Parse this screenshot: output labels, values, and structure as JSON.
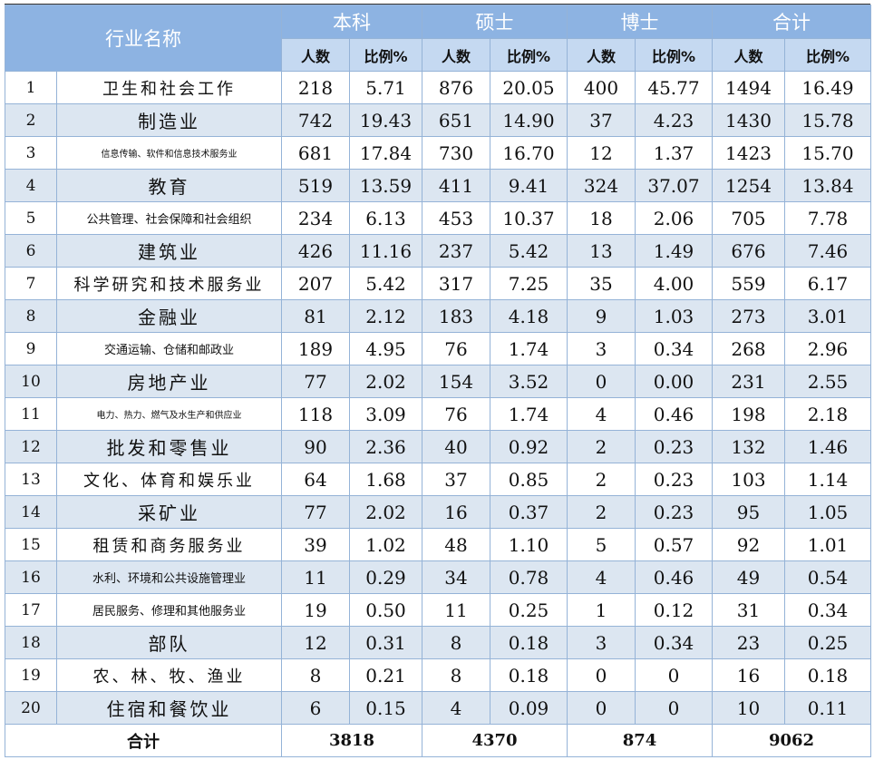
{
  "table": {
    "header": {
      "name": "行业名称",
      "groups": [
        "本科",
        "硕士",
        "博士",
        "合计"
      ],
      "sub": [
        "人数",
        "比例%"
      ]
    },
    "rows": [
      [
        "1",
        "卫生和社会工作",
        "218",
        "5.71",
        "876",
        "20.05",
        "400",
        "45.77",
        "1494",
        "16.49"
      ],
      [
        "2",
        "制造业",
        "742",
        "19.43",
        "651",
        "14.90",
        "37",
        "4.23",
        "1430",
        "15.78"
      ],
      [
        "3",
        "信息传输、软件和信息技术服务业",
        "681",
        "17.84",
        "730",
        "16.70",
        "12",
        "1.37",
        "1423",
        "15.70"
      ],
      [
        "4",
        "教育",
        "519",
        "13.59",
        "411",
        "9.41",
        "324",
        "37.07",
        "1254",
        "13.84"
      ],
      [
        "5",
        "公共管理、社会保障和社会组织",
        "234",
        "6.13",
        "453",
        "10.37",
        "18",
        "2.06",
        "705",
        "7.78"
      ],
      [
        "6",
        "建筑业",
        "426",
        "11.16",
        "237",
        "5.42",
        "13",
        "1.49",
        "676",
        "7.46"
      ],
      [
        "7",
        "科学研究和技术服务业",
        "207",
        "5.42",
        "317",
        "7.25",
        "35",
        "4.00",
        "559",
        "6.17"
      ],
      [
        "8",
        "金融业",
        "81",
        "2.12",
        "183",
        "4.18",
        "9",
        "1.03",
        "273",
        "3.01"
      ],
      [
        "9",
        "交通运输、仓储和邮政业",
        "189",
        "4.95",
        "76",
        "1.74",
        "3",
        "0.34",
        "268",
        "2.96"
      ],
      [
        "10",
        "房地产业",
        "77",
        "2.02",
        "154",
        "3.52",
        "0",
        "0.00",
        "231",
        "2.55"
      ],
      [
        "11",
        "电力、热力、燃气及水生产和供应业",
        "118",
        "3.09",
        "76",
        "1.74",
        "4",
        "0.46",
        "198",
        "2.18"
      ],
      [
        "12",
        "批发和零售业",
        "90",
        "2.36",
        "40",
        "0.92",
        "2",
        "0.23",
        "132",
        "1.46"
      ],
      [
        "13",
        "文化、体育和娱乐业",
        "64",
        "1.68",
        "37",
        "0.85",
        "2",
        "0.23",
        "103",
        "1.14"
      ],
      [
        "14",
        "采矿业",
        "77",
        "2.02",
        "16",
        "0.37",
        "2",
        "0.23",
        "95",
        "1.05"
      ],
      [
        "15",
        "租赁和商务服务业",
        "39",
        "1.02",
        "48",
        "1.10",
        "5",
        "0.57",
        "92",
        "1.01"
      ],
      [
        "16",
        "水利、环境和公共设施管理业",
        "11",
        "0.29",
        "34",
        "0.78",
        "4",
        "0.46",
        "49",
        "0.54"
      ],
      [
        "17",
        "居民服务、修理和其他服务业",
        "19",
        "0.50",
        "11",
        "0.25",
        "1",
        "0.12",
        "31",
        "0.34"
      ],
      [
        "18",
        "部队",
        "12",
        "0.31",
        "8",
        "0.18",
        "3",
        "0.34",
        "23",
        "0.25"
      ],
      [
        "19",
        "农、林、牧、渔业",
        "8",
        "0.21",
        "8",
        "0.18",
        "0",
        "0",
        "16",
        "0.18"
      ],
      [
        "20",
        "住宿和餐饮业",
        "6",
        "0.15",
        "4",
        "0.09",
        "0",
        "0",
        "10",
        "0.11"
      ]
    ],
    "total": {
      "label": "合计",
      "values": [
        "3818",
        "4370",
        "874",
        "9062"
      ]
    }
  }
}
